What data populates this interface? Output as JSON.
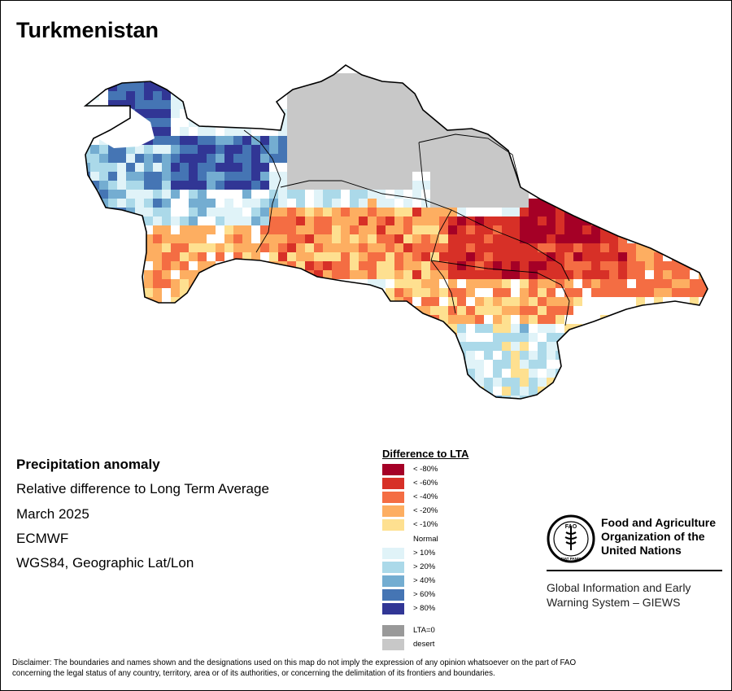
{
  "map": {
    "title": "Turkmenistan"
  },
  "info": {
    "line1": "Precipitation anomaly",
    "line2": "Relative difference to Long Term Average",
    "line3": "March 2025",
    "line4": "ECMWF",
    "line5": "WGS84, Geographic Lat/Lon"
  },
  "legend": {
    "title": "Difference to LTA",
    "items": [
      {
        "label": "< -80%",
        "color": "#a50026"
      },
      {
        "label": "< -60%",
        "color": "#d73027"
      },
      {
        "label": "< -40%",
        "color": "#f46d43"
      },
      {
        "label": "< -20%",
        "color": "#fdae61"
      },
      {
        "label": "< -10%",
        "color": "#fee090"
      },
      {
        "label": "Normal",
        "color": "#ffffff"
      },
      {
        "label": "> 10%",
        "color": "#e0f3f8"
      },
      {
        "label": "> 20%",
        "color": "#abd9e9"
      },
      {
        "label": "> 40%",
        "color": "#74add1"
      },
      {
        "label": "> 60%",
        "color": "#4575b4"
      },
      {
        "label": "> 80%",
        "color": "#313695"
      },
      {
        "label": "LTA=0",
        "color": "#999999"
      },
      {
        "label": "desert",
        "color": "#c8c8c8"
      }
    ]
  },
  "organization": {
    "name_line1": "Food and Agriculture",
    "name_line2": "Organization of the",
    "name_line3": "United Nations",
    "logo_text": "FAO",
    "logo_motto": "FIAT PANIS",
    "giews_line1": "Global Information and Early",
    "giews_line2": "Warning System – GIEWS"
  },
  "disclaimer": {
    "line1": "Disclaimer: The boundaries and names shown and the designations used on this map do not imply the expression of any opinion whatsoever on the part of FAO",
    "line2": "concerning the legal status of any country, territory, area or of its authorities, or concerning the delimitation of its frontiers and boundaries."
  }
}
